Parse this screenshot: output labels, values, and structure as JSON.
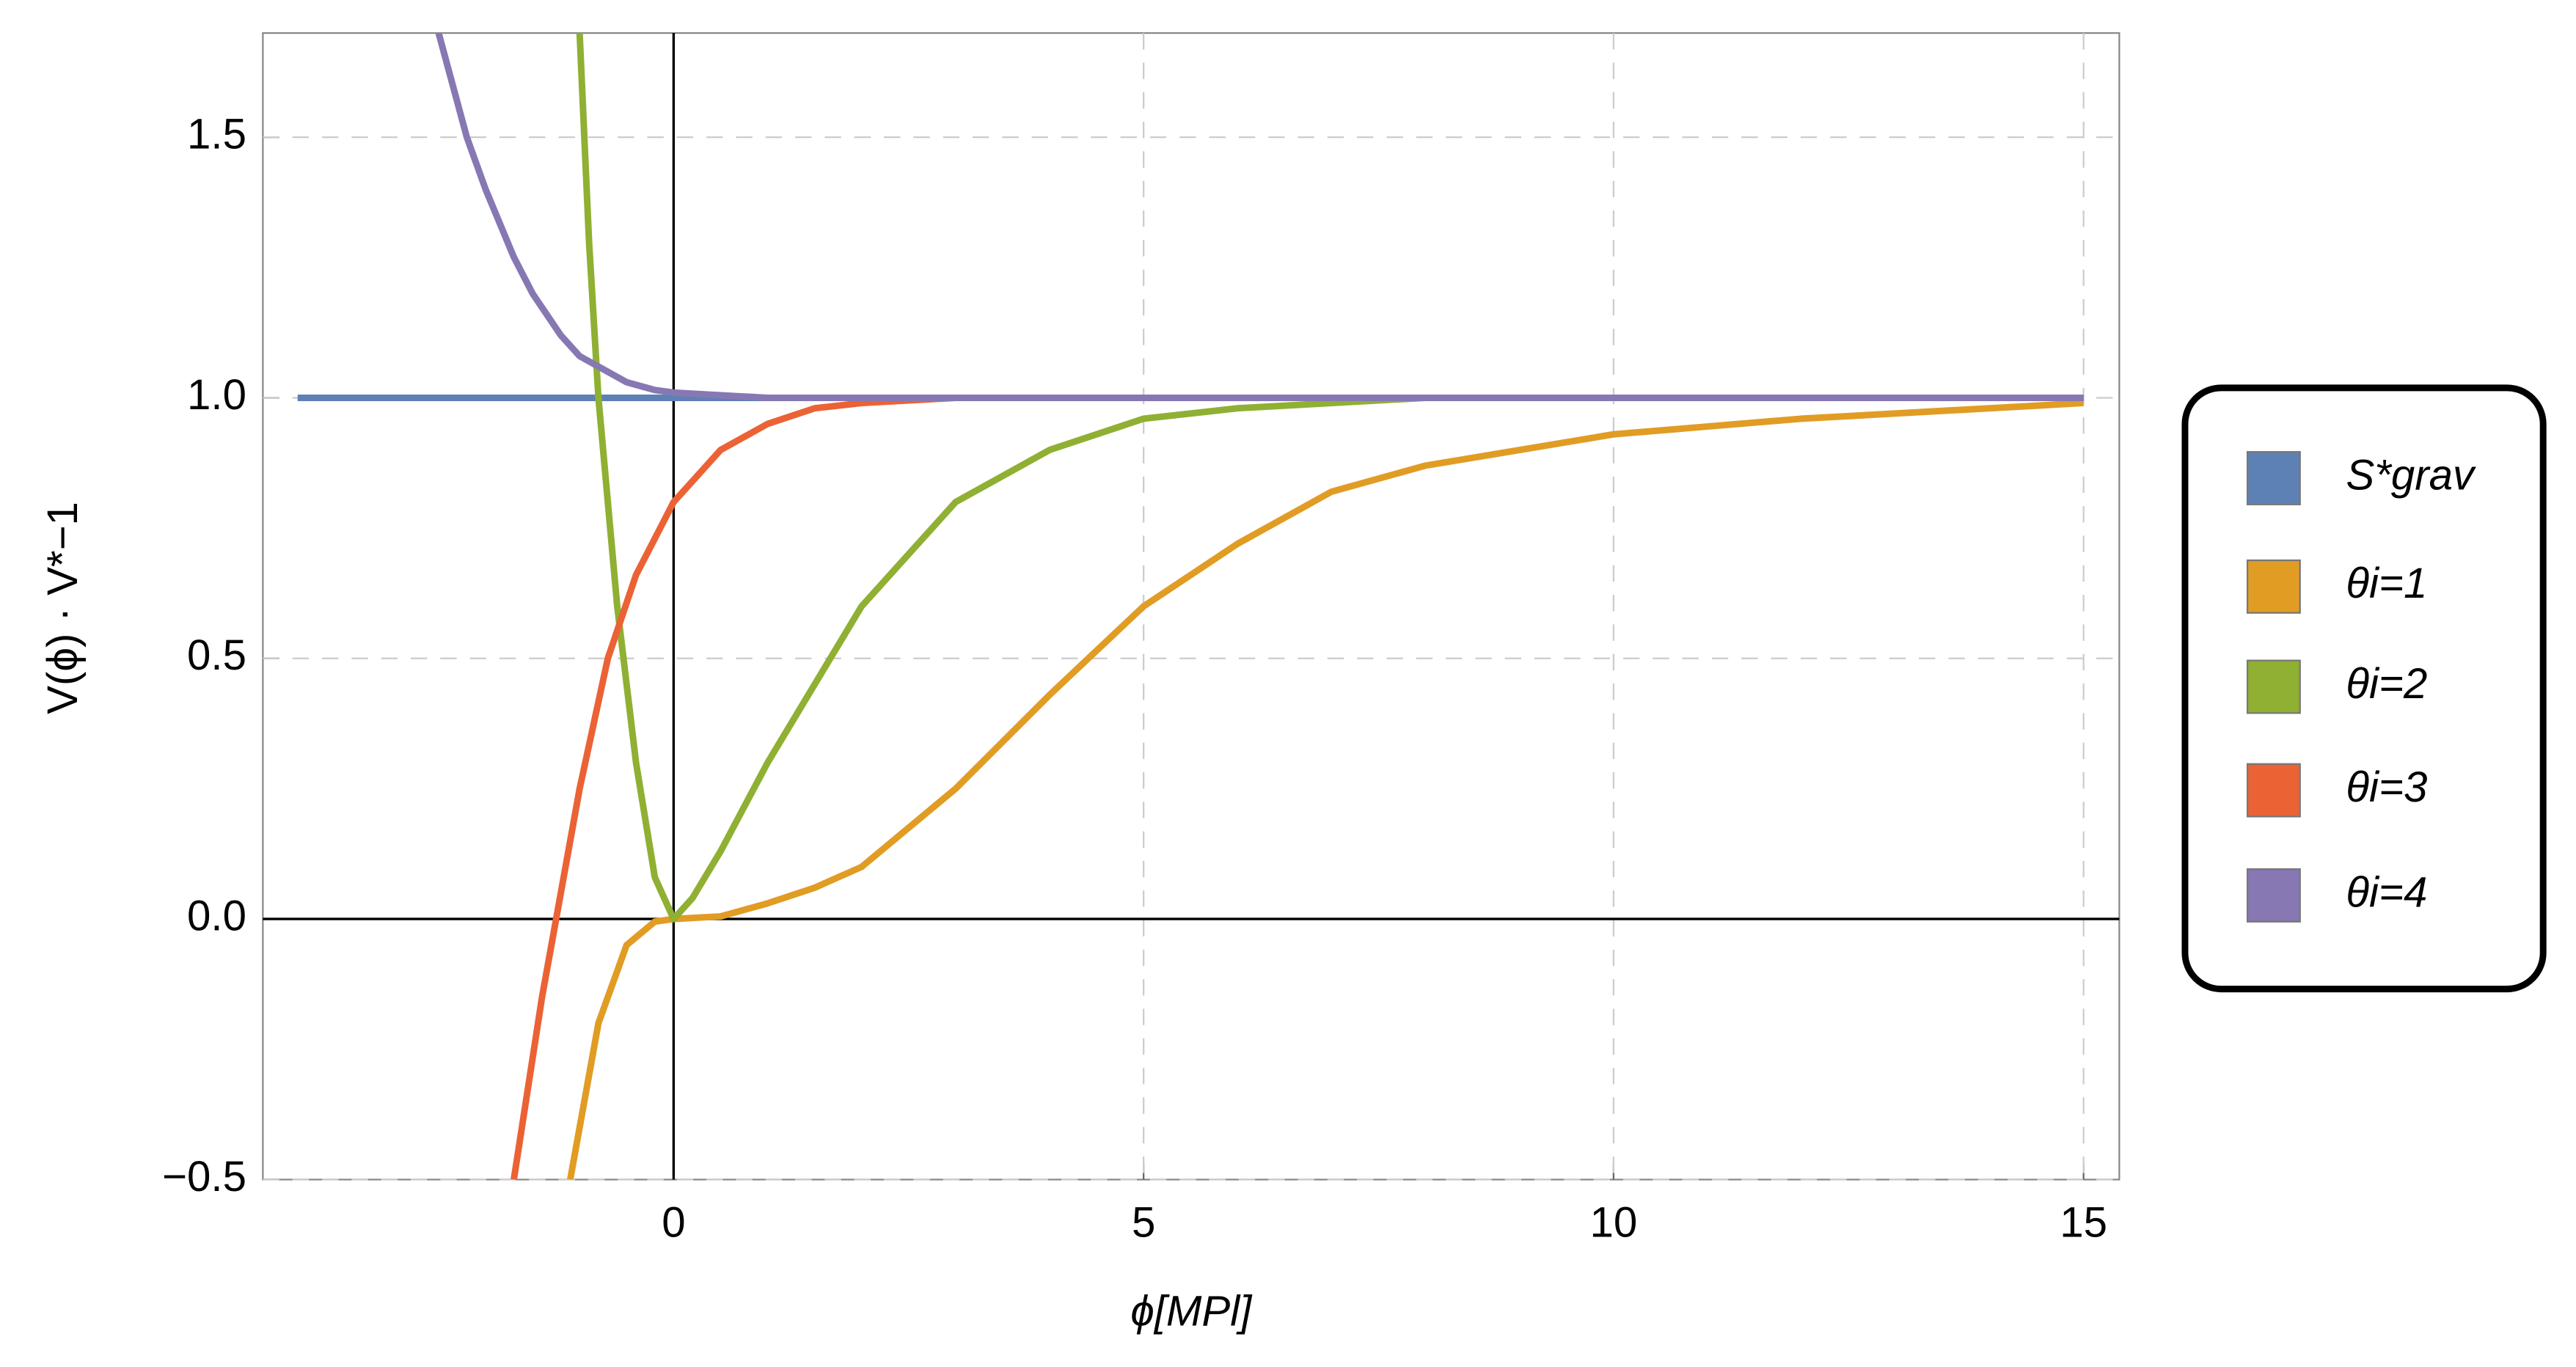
{
  "chart_data": {
    "type": "line",
    "xlabel": "ϕ[MPl]",
    "ylabel": "V(ϕ) · V*−1",
    "xlim": [
      -4.37,
      15.38
    ],
    "ylim": [
      -0.5,
      1.7
    ],
    "xticks": [
      0,
      5,
      10,
      15
    ],
    "yticks": [
      {
        "value": -0.5,
        "label": "−0.5"
      },
      {
        "value": 0,
        "label": "0.0"
      },
      {
        "value": 0.5,
        "label": "0.5"
      },
      {
        "value": 1,
        "label": "1.0"
      },
      {
        "value": 1.5,
        "label": "1.5"
      }
    ],
    "grid": true,
    "legend": "right",
    "series": [
      {
        "name": "S*grav",
        "color": "#5e81b5",
        "x": [
          -4,
          15
        ],
        "values": [
          1,
          1
        ]
      },
      {
        "name": "θi=1",
        "color": "#e19c24",
        "x": [
          -1.1,
          -0.8,
          -0.5,
          -0.2,
          0,
          0.5,
          1,
          1.5,
          2,
          3,
          4,
          5,
          6,
          7,
          8,
          10,
          12,
          15
        ],
        "values": [
          -0.5,
          -0.2,
          -0.05,
          -0.005,
          0,
          0.005,
          0.03,
          0.06,
          0.1,
          0.25,
          0.43,
          0.6,
          0.72,
          0.82,
          0.87,
          0.93,
          0.96,
          0.99
        ]
      },
      {
        "name": "θi=2",
        "color": "#8fb032",
        "x": [
          -1.0,
          -0.9,
          -0.8,
          -0.6,
          -0.4,
          -0.2,
          0,
          0.2,
          0.5,
          1,
          1.5,
          2,
          3,
          4,
          5,
          6,
          8,
          15
        ],
        "values": [
          1.7,
          1.3,
          1.0,
          0.6,
          0.3,
          0.08,
          0,
          0.04,
          0.13,
          0.3,
          0.45,
          0.6,
          0.8,
          0.9,
          0.96,
          0.98,
          1.0,
          1.0
        ]
      },
      {
        "name": "θi=3",
        "color": "#eb6235",
        "x": [
          -1.7,
          -1.4,
          -1.0,
          -0.7,
          -0.4,
          0,
          0.5,
          1,
          1.5,
          2,
          3,
          4,
          15
        ],
        "values": [
          -0.5,
          -0.15,
          0.25,
          0.5,
          0.66,
          0.8,
          0.9,
          0.95,
          0.98,
          0.99,
          1.0,
          1.0,
          1.0
        ]
      },
      {
        "name": "θi=4",
        "color": "#8778b3",
        "x": [
          -2.5,
          -2.2,
          -2.0,
          -1.7,
          -1.5,
          -1.2,
          -1.0,
          -0.7,
          -0.5,
          -0.2,
          0,
          0.5,
          1,
          2,
          15
        ],
        "values": [
          1.7,
          1.5,
          1.4,
          1.27,
          1.2,
          1.12,
          1.08,
          1.05,
          1.03,
          1.015,
          1.01,
          1.005,
          1.0,
          1.0,
          1.0
        ]
      }
    ]
  }
}
